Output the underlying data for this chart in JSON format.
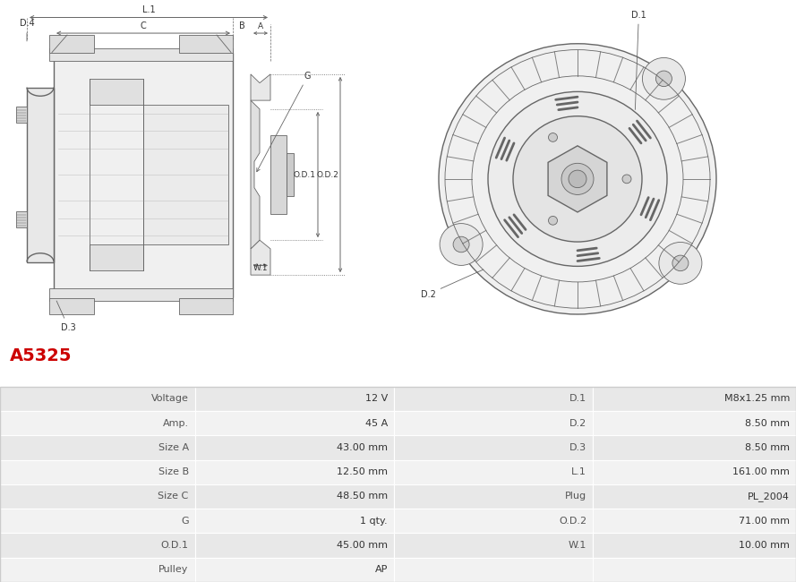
{
  "title": "A5325",
  "title_color": "#cc0000",
  "bg_color": "#ffffff",
  "table": {
    "col1_labels": [
      "Voltage",
      "Amp.",
      "Size A",
      "Size B",
      "Size C",
      "G",
      "O.D.1",
      "Pulley"
    ],
    "col1_values": [
      "12 V",
      "45 A",
      "43.00 mm",
      "12.50 mm",
      "48.50 mm",
      "1 qty.",
      "45.00 mm",
      "AP"
    ],
    "col2_labels": [
      "D.1",
      "D.2",
      "D.3",
      "L.1",
      "Plug",
      "O.D.2",
      "W.1",
      ""
    ],
    "col2_values": [
      "M8x1.25 mm",
      "8.50 mm",
      "8.50 mm",
      "161.00 mm",
      "PL_2004",
      "71.00 mm",
      "10.00 mm",
      ""
    ],
    "row_colors": [
      "#e8e8e8",
      "#f2f2f2"
    ],
    "border_color": "#ffffff",
    "text_color": "#333333",
    "label_color": "#555555"
  }
}
